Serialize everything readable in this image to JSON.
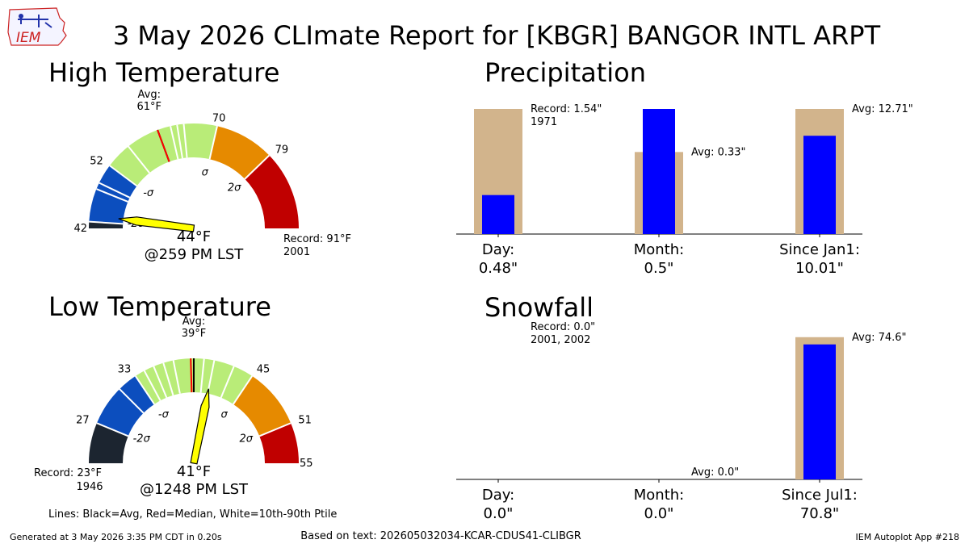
{
  "title": "3 May 2026 CLImate Report for [KBGR] BANGOR INTL ARPT",
  "logo_text": "IEM",
  "footer": {
    "generated": "Generated at 3 May 2026 3:35 PM CDT in 0.20s",
    "based_on": "Based on text: 202605032034-KCAR-CDUS41-CLIBGR",
    "app": "IEM Autoplot App #218"
  },
  "legend_note": "Lines: Black=Avg, Red=Median, White=10th-90th Ptile",
  "colors": {
    "blue": "#0000ff",
    "tan": "#d2b48c",
    "gauge_blue": "#0c4ebe",
    "gauge_green": "#b9ec78",
    "gauge_orange": "#e68a00",
    "gauge_red": "#c00000",
    "gauge_dark": "#1c2530",
    "needle": "#ffff00"
  },
  "chart_data": [
    {
      "type": "gauge",
      "title": "High Temperature",
      "range": [
        42,
        91
      ],
      "bands": [
        {
          "from": 42,
          "to": 43,
          "color": "#1c2530"
        },
        {
          "from": 43,
          "to": 52,
          "color": "#0c4ebe"
        },
        {
          "from": 52,
          "to": 70,
          "color": "#b9ec78"
        },
        {
          "from": 70,
          "to": 79,
          "color": "#e68a00"
        },
        {
          "from": 79,
          "to": 91,
          "color": "#c00000"
        }
      ],
      "tick_labels": [
        {
          "value": 42,
          "text": "42"
        },
        {
          "value": 52,
          "text": "52"
        },
        {
          "value": 70,
          "text": "70"
        },
        {
          "value": 79,
          "text": "79"
        }
      ],
      "sigma_labels": [
        {
          "value": 43.5,
          "text": "-2σ"
        },
        {
          "value": 52.5,
          "text": "-σ"
        },
        {
          "value": 69.5,
          "text": "σ"
        },
        {
          "value": 78.5,
          "text": "2σ"
        }
      ],
      "avg_value": 61,
      "avg_label": "Avg:",
      "avg_text": "61°F",
      "median_value": 61,
      "white_lines": [
        48,
        49,
        56,
        63,
        64,
        65
      ],
      "needle_value": 44,
      "value_text": "44°F",
      "time_text": "@259 PM LST",
      "record_text": "Record: 91°F",
      "record_year": "2001"
    },
    {
      "type": "gauge",
      "title": "Low Temperature",
      "range": [
        23,
        55
      ],
      "bands": [
        {
          "from": 23,
          "to": 27,
          "color": "#1c2530"
        },
        {
          "from": 27,
          "to": 33,
          "color": "#0c4ebe"
        },
        {
          "from": 33,
          "to": 45,
          "color": "#b9ec78"
        },
        {
          "from": 45,
          "to": 51,
          "color": "#e68a00"
        },
        {
          "from": 51,
          "to": 55,
          "color": "#c00000"
        }
      ],
      "tick_labels": [
        {
          "value": 23,
          "text": ""
        },
        {
          "value": 27,
          "text": "27"
        },
        {
          "value": 33,
          "text": "33"
        },
        {
          "value": 45,
          "text": "45"
        },
        {
          "value": 51,
          "text": "51"
        },
        {
          "value": 55,
          "text": "55"
        }
      ],
      "sigma_labels": [
        {
          "value": 27.6,
          "text": "-2σ"
        },
        {
          "value": 33.4,
          "text": "-σ"
        },
        {
          "value": 44.6,
          "text": "σ"
        },
        {
          "value": 50.4,
          "text": "2σ"
        }
      ],
      "avg_value": 39,
      "avg_label": "Avg:",
      "avg_text": "39°F",
      "median_value": 38.7,
      "white_lines": [
        31,
        34,
        35,
        36,
        37,
        40,
        41,
        43
      ],
      "needle_value": 41,
      "value_text": "41°F",
      "time_text": "@1248 PM LST",
      "record_text": "Record: 23°F",
      "record_year": "1946"
    },
    {
      "type": "bar",
      "title": "Precipitation",
      "ylim": [
        0,
        1.54
      ],
      "categories": [
        "Day:",
        "Month:",
        "Since Jan1:"
      ],
      "value_texts": [
        "0.48\"",
        "0.5\"",
        "10.01\""
      ],
      "series": [
        {
          "name": "",
          "color": "#d2b48c",
          "values": [
            1.54,
            1.01,
            1.54
          ]
        },
        {
          "name": "",
          "color": "#0000ff",
          "values": [
            0.48,
            1.54,
            1.21
          ]
        }
      ],
      "annotations": [
        {
          "bar": 0,
          "lines": [
            "Record: 1.54\"",
            "1971"
          ]
        },
        {
          "bar": 1,
          "lines": [
            "Avg: 0.33\""
          ]
        },
        {
          "bar": 2,
          "lines": [
            "Avg: 12.71\""
          ]
        }
      ]
    },
    {
      "type": "bar",
      "title": "Snowfall",
      "ylim": [
        0,
        80
      ],
      "categories": [
        "Day:",
        "Month:",
        "Since Jul1:"
      ],
      "value_texts": [
        "0.0\"",
        "0.0\"",
        "70.8\""
      ],
      "series": [
        {
          "name": "",
          "color": "#d2b48c",
          "values": [
            0,
            0,
            74.6
          ]
        },
        {
          "name": "",
          "color": "#0000ff",
          "values": [
            0,
            0,
            70.8
          ]
        }
      ],
      "annotations": [
        {
          "bar": 0,
          "lines": [
            "Record: 0.0\"",
            "2001, 2002"
          ]
        },
        {
          "bar": 1,
          "lines": [
            "Avg: 0.0\""
          ]
        },
        {
          "bar": 2,
          "lines": [
            "Avg: 74.6\""
          ]
        }
      ]
    }
  ]
}
